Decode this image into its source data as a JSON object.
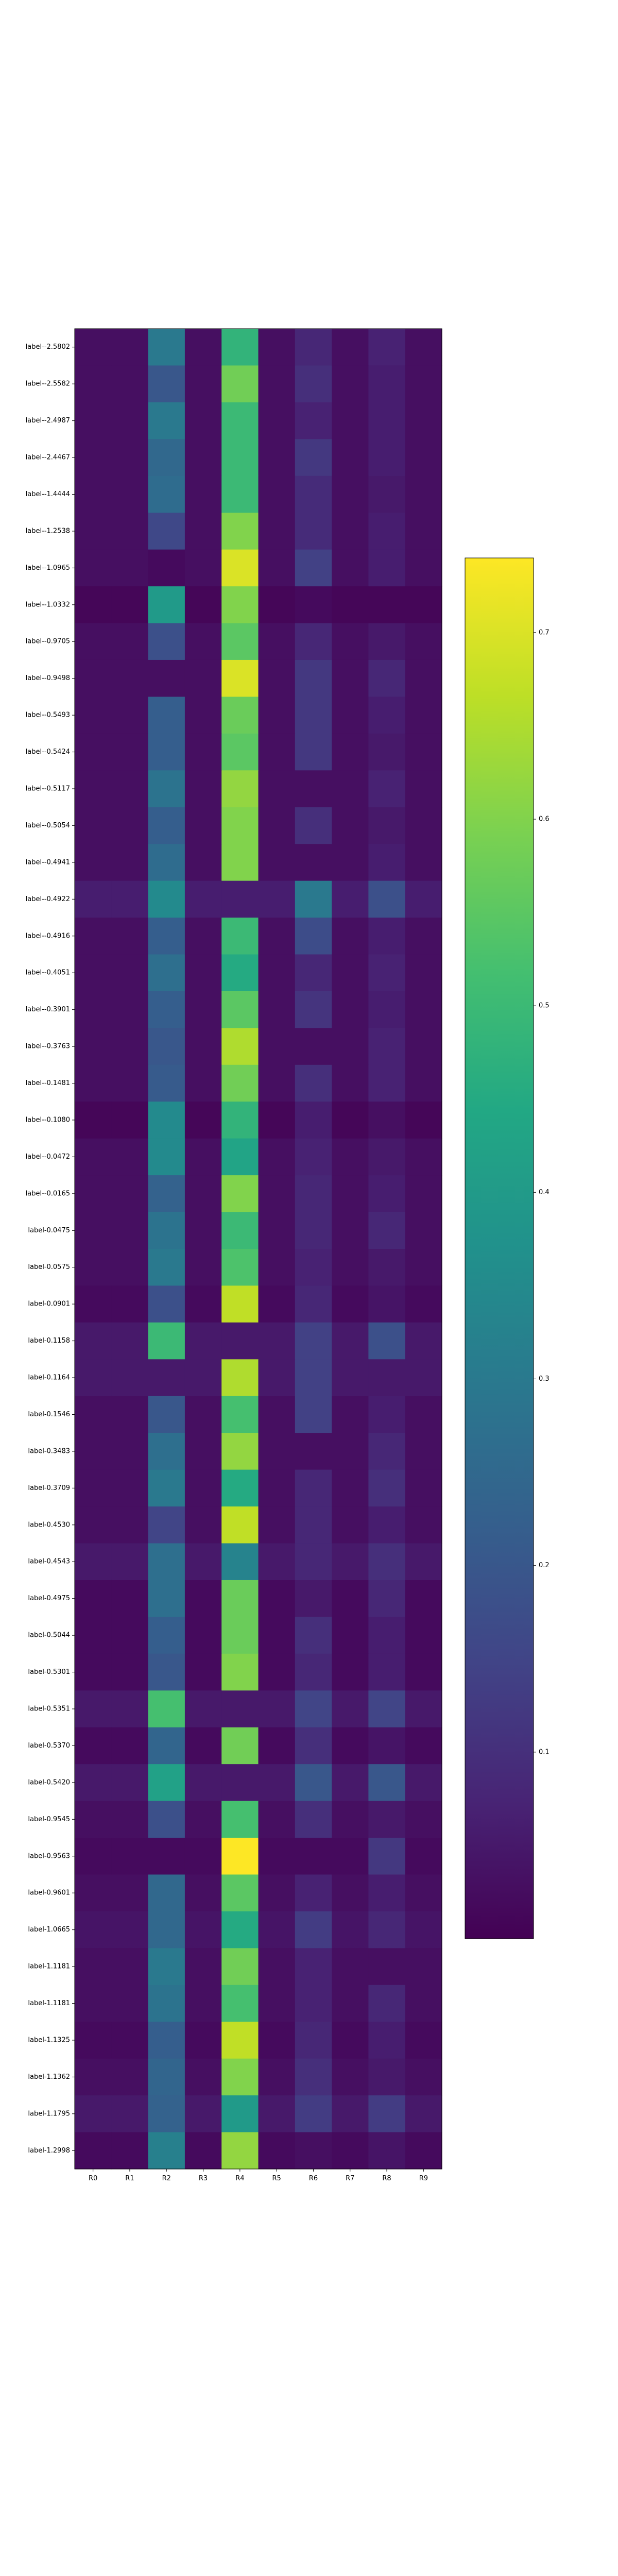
{
  "chart_data": {
    "type": "heatmap",
    "title": "",
    "xlabel": "",
    "ylabel": "",
    "columns": [
      "R0",
      "R1",
      "R2",
      "R3",
      "R4",
      "R5",
      "R6",
      "R7",
      "R8",
      "R9"
    ],
    "rows": [
      {
        "label": "label--2.5802",
        "values": [
          0.03,
          0.03,
          0.3,
          0.03,
          0.48,
          0.03,
          0.08,
          0.03,
          0.07,
          0.03
        ]
      },
      {
        "label": "label--2.5582",
        "values": [
          0.03,
          0.03,
          0.2,
          0.03,
          0.58,
          0.03,
          0.1,
          0.03,
          0.06,
          0.03
        ]
      },
      {
        "label": "label--2.4987",
        "values": [
          0.03,
          0.03,
          0.3,
          0.03,
          0.5,
          0.03,
          0.07,
          0.03,
          0.06,
          0.03
        ]
      },
      {
        "label": "label--2.4467",
        "values": [
          0.03,
          0.03,
          0.25,
          0.03,
          0.5,
          0.03,
          0.12,
          0.03,
          0.06,
          0.03
        ]
      },
      {
        "label": "label--1.4444",
        "values": [
          0.03,
          0.03,
          0.26,
          0.03,
          0.5,
          0.03,
          0.09,
          0.03,
          0.05,
          0.03
        ]
      },
      {
        "label": "label--1.2538",
        "values": [
          0.03,
          0.03,
          0.16,
          0.03,
          0.6,
          0.03,
          0.09,
          0.03,
          0.06,
          0.03
        ]
      },
      {
        "label": "label--1.0965",
        "values": [
          0.03,
          0.03,
          0.02,
          0.03,
          0.7,
          0.03,
          0.14,
          0.03,
          0.06,
          0.03
        ]
      },
      {
        "label": "label--1.0332",
        "values": [
          0.01,
          0.01,
          0.4,
          0.01,
          0.6,
          0.01,
          0.02,
          0.01,
          0.01,
          0.01
        ]
      },
      {
        "label": "label--0.9705",
        "values": [
          0.03,
          0.03,
          0.18,
          0.03,
          0.55,
          0.03,
          0.08,
          0.03,
          0.05,
          0.03
        ]
      },
      {
        "label": "label--0.9498",
        "values": [
          0.03,
          0.03,
          0.03,
          0.03,
          0.7,
          0.03,
          0.12,
          0.03,
          0.08,
          0.03
        ]
      },
      {
        "label": "label--0.5493",
        "values": [
          0.03,
          0.03,
          0.22,
          0.03,
          0.57,
          0.03,
          0.12,
          0.03,
          0.06,
          0.03
        ]
      },
      {
        "label": "label--0.5424",
        "values": [
          0.03,
          0.03,
          0.22,
          0.03,
          0.55,
          0.03,
          0.12,
          0.03,
          0.05,
          0.03
        ]
      },
      {
        "label": "label--0.5117",
        "values": [
          0.03,
          0.03,
          0.28,
          0.03,
          0.62,
          0.03,
          0.03,
          0.03,
          0.07,
          0.03
        ]
      },
      {
        "label": "label--0.5054",
        "values": [
          0.03,
          0.03,
          0.22,
          0.03,
          0.6,
          0.03,
          0.1,
          0.03,
          0.05,
          0.03
        ]
      },
      {
        "label": "label--0.4941",
        "values": [
          0.03,
          0.03,
          0.26,
          0.03,
          0.6,
          0.03,
          0.03,
          0.03,
          0.06,
          0.03
        ]
      },
      {
        "label": "label--0.4922",
        "values": [
          0.06,
          0.06,
          0.35,
          0.06,
          0.06,
          0.06,
          0.3,
          0.06,
          0.18,
          0.06
        ]
      },
      {
        "label": "label--0.4916",
        "values": [
          0.03,
          0.03,
          0.22,
          0.03,
          0.5,
          0.03,
          0.17,
          0.03,
          0.06,
          0.03
        ]
      },
      {
        "label": "label--0.4051",
        "values": [
          0.03,
          0.03,
          0.27,
          0.03,
          0.45,
          0.03,
          0.08,
          0.03,
          0.07,
          0.03
        ]
      },
      {
        "label": "label--0.3901",
        "values": [
          0.03,
          0.03,
          0.22,
          0.03,
          0.55,
          0.03,
          0.11,
          0.03,
          0.06,
          0.03
        ]
      },
      {
        "label": "label--0.3763",
        "values": [
          0.03,
          0.03,
          0.2,
          0.03,
          0.65,
          0.03,
          0.03,
          0.03,
          0.07,
          0.03
        ]
      },
      {
        "label": "label--0.1481",
        "values": [
          0.03,
          0.03,
          0.21,
          0.03,
          0.58,
          0.03,
          0.1,
          0.03,
          0.07,
          0.03
        ]
      },
      {
        "label": "label--0.1080",
        "values": [
          0.01,
          0.01,
          0.35,
          0.01,
          0.48,
          0.01,
          0.06,
          0.01,
          0.03,
          0.01
        ]
      },
      {
        "label": "label--0.0472",
        "values": [
          0.03,
          0.03,
          0.35,
          0.03,
          0.43,
          0.03,
          0.07,
          0.03,
          0.05,
          0.03
        ]
      },
      {
        "label": "label--0.0165",
        "values": [
          0.03,
          0.03,
          0.23,
          0.03,
          0.6,
          0.03,
          0.08,
          0.03,
          0.06,
          0.03
        ]
      },
      {
        "label": "label-0.0475",
        "values": [
          0.03,
          0.03,
          0.28,
          0.03,
          0.5,
          0.03,
          0.08,
          0.03,
          0.08,
          0.03
        ]
      },
      {
        "label": "label-0.0575",
        "values": [
          0.03,
          0.03,
          0.3,
          0.03,
          0.53,
          0.03,
          0.07,
          0.03,
          0.05,
          0.03
        ]
      },
      {
        "label": "label-0.0901",
        "values": [
          0.02,
          0.02,
          0.18,
          0.02,
          0.67,
          0.02,
          0.08,
          0.02,
          0.04,
          0.02
        ]
      },
      {
        "label": "label-0.1158",
        "values": [
          0.05,
          0.05,
          0.5,
          0.05,
          0.05,
          0.05,
          0.14,
          0.05,
          0.18,
          0.05
        ]
      },
      {
        "label": "label-0.1164",
        "values": [
          0.05,
          0.05,
          0.05,
          0.05,
          0.65,
          0.05,
          0.14,
          0.05,
          0.05,
          0.05
        ]
      },
      {
        "label": "label-0.1546",
        "values": [
          0.03,
          0.03,
          0.2,
          0.03,
          0.52,
          0.03,
          0.14,
          0.03,
          0.06,
          0.03
        ]
      },
      {
        "label": "label-0.3483",
        "values": [
          0.03,
          0.03,
          0.27,
          0.03,
          0.62,
          0.03,
          0.03,
          0.03,
          0.08,
          0.03
        ]
      },
      {
        "label": "label-0.3709",
        "values": [
          0.03,
          0.03,
          0.3,
          0.03,
          0.45,
          0.03,
          0.08,
          0.03,
          0.1,
          0.03
        ]
      },
      {
        "label": "label-0.4530",
        "values": [
          0.03,
          0.03,
          0.15,
          0.03,
          0.67,
          0.03,
          0.08,
          0.03,
          0.06,
          0.03
        ]
      },
      {
        "label": "label-0.4543",
        "values": [
          0.05,
          0.05,
          0.27,
          0.05,
          0.33,
          0.05,
          0.08,
          0.05,
          0.1,
          0.05
        ]
      },
      {
        "label": "label-0.4975",
        "values": [
          0.02,
          0.02,
          0.27,
          0.02,
          0.57,
          0.02,
          0.05,
          0.02,
          0.08,
          0.02
        ]
      },
      {
        "label": "label-0.5044",
        "values": [
          0.02,
          0.02,
          0.22,
          0.02,
          0.57,
          0.02,
          0.1,
          0.02,
          0.06,
          0.02
        ]
      },
      {
        "label": "label-0.5301",
        "values": [
          0.02,
          0.02,
          0.2,
          0.02,
          0.6,
          0.02,
          0.08,
          0.02,
          0.06,
          0.02
        ]
      },
      {
        "label": "label-0.5351",
        "values": [
          0.05,
          0.05,
          0.52,
          0.05,
          0.05,
          0.05,
          0.15,
          0.05,
          0.15,
          0.05
        ]
      },
      {
        "label": "label-0.5370",
        "values": [
          0.02,
          0.02,
          0.24,
          0.02,
          0.58,
          0.02,
          0.1,
          0.02,
          0.04,
          0.02
        ]
      },
      {
        "label": "label-0.5420",
        "values": [
          0.05,
          0.05,
          0.42,
          0.05,
          0.05,
          0.05,
          0.2,
          0.05,
          0.2,
          0.05
        ]
      },
      {
        "label": "label-0.9545",
        "values": [
          0.03,
          0.03,
          0.18,
          0.03,
          0.52,
          0.03,
          0.1,
          0.03,
          0.05,
          0.03
        ]
      },
      {
        "label": "label-0.9563",
        "values": [
          0.02,
          0.02,
          0.02,
          0.02,
          0.74,
          0.02,
          0.02,
          0.02,
          0.12,
          0.02
        ]
      },
      {
        "label": "label-0.9601",
        "values": [
          0.03,
          0.03,
          0.25,
          0.03,
          0.55,
          0.03,
          0.07,
          0.03,
          0.06,
          0.03
        ]
      },
      {
        "label": "label-1.0665",
        "values": [
          0.04,
          0.04,
          0.25,
          0.04,
          0.45,
          0.04,
          0.13,
          0.04,
          0.08,
          0.04
        ]
      },
      {
        "label": "label-1.1181",
        "values": [
          0.03,
          0.03,
          0.3,
          0.03,
          0.58,
          0.03,
          0.07,
          0.03,
          0.03,
          0.03
        ]
      },
      {
        "label": "label-1.1181",
        "values": [
          0.03,
          0.03,
          0.28,
          0.03,
          0.52,
          0.03,
          0.07,
          0.03,
          0.08,
          0.03
        ]
      },
      {
        "label": "label-1.1325",
        "values": [
          0.02,
          0.02,
          0.22,
          0.02,
          0.67,
          0.02,
          0.08,
          0.02,
          0.06,
          0.02
        ]
      },
      {
        "label": "label-1.1362",
        "values": [
          0.03,
          0.03,
          0.24,
          0.03,
          0.6,
          0.03,
          0.1,
          0.03,
          0.05,
          0.03
        ]
      },
      {
        "label": "label-1.1795",
        "values": [
          0.05,
          0.05,
          0.23,
          0.05,
          0.4,
          0.05,
          0.13,
          0.05,
          0.13,
          0.05
        ]
      },
      {
        "label": "label-1.2998",
        "values": [
          0.02,
          0.02,
          0.32,
          0.02,
          0.62,
          0.02,
          0.03,
          0.02,
          0.04,
          0.02
        ]
      }
    ],
    "vmin": 0.0,
    "vmax": 0.74,
    "colormap": "viridis",
    "colorbar_ticks": [
      {
        "value": 0.1,
        "label": "0.1"
      },
      {
        "value": 0.2,
        "label": "0.2"
      },
      {
        "value": 0.3,
        "label": "0.3"
      },
      {
        "value": 0.4,
        "label": "0.4"
      },
      {
        "value": 0.5,
        "label": "0.5"
      },
      {
        "value": 0.6,
        "label": "0.6"
      },
      {
        "value": 0.7,
        "label": "0.7"
      }
    ]
  }
}
